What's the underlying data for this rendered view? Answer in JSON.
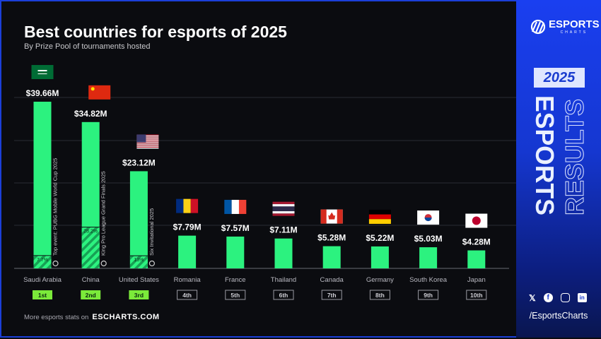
{
  "title": "Best countries for esports of 2025",
  "subtitle": "By Prize Pool of tournaments hosted",
  "footer": {
    "text": "More esports stats on",
    "link": "ESCHARTS.COM"
  },
  "sidebar": {
    "brand": "ESPORTS",
    "brand_sub": "CHARTS",
    "year": "2025",
    "word1": "ESPORTS",
    "word2": "RESULTS",
    "handle": "/EsportsCharts",
    "social_icons": [
      "x-icon",
      "facebook-icon",
      "instagram-icon",
      "linkedin-icon"
    ]
  },
  "colors": {
    "bar": "#2cf27f",
    "rank_top": "#7bea3a",
    "accent": "#1a3ff0"
  },
  "chart_data": {
    "type": "bar",
    "title": "Best countries for esports of 2025",
    "subtitle": "By Prize Pool of tournaments hosted",
    "grid": true,
    "categories": [
      "Saudi Arabia",
      "China",
      "United States",
      "Romania",
      "France",
      "Thailand",
      "Canada",
      "Germany",
      "South Korea",
      "Japan"
    ],
    "values": [
      39.66,
      34.82,
      23.12,
      7.79,
      7.57,
      7.11,
      5.28,
      5.22,
      5.03,
      4.28
    ],
    "value_labels": [
      "$39.66M",
      "$34.82M",
      "$23.12M",
      "$7.79M",
      "$7.57M",
      "$7.11M",
      "$5.28M",
      "$5.22M",
      "$5.03M",
      "$4.28M"
    ],
    "ranks": [
      "1st",
      "2nd",
      "3rd",
      "4th",
      "5th",
      "6th",
      "7th",
      "8th",
      "9th",
      "10th"
    ],
    "top_events": [
      {
        "label": "Top event: PUBG Mobile World Cup 2025",
        "share": "7.7%",
        "share_value": 7.7
      },
      {
        "label": "King Pro League Grand Finals 2025",
        "share": "28.2%",
        "share_value": 28.2
      },
      {
        "label": "Six Invitational 2025",
        "share": "13%",
        "share_value": 13
      }
    ],
    "flags": [
      "sa",
      "cn",
      "us",
      "ro",
      "fr",
      "th",
      "ca",
      "de",
      "kr",
      "jp"
    ]
  }
}
